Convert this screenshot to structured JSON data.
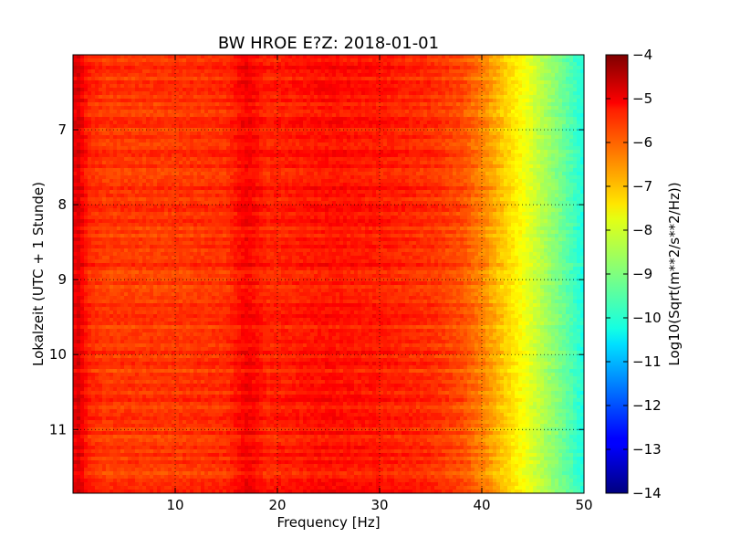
{
  "chart_data": {
    "type": "heatmap",
    "title": "BW HROE E?Z: 2018-01-01",
    "xlabel": "Frequency [Hz]",
    "ylabel": "Lokalzeit (UTC + 1 Stunde)",
    "xlim": [
      0,
      50
    ],
    "ylim": [
      6.0,
      11.85
    ],
    "y_axis_inverted": true,
    "x_ticks": [
      10,
      20,
      30,
      40,
      50
    ],
    "x_tick_labels": [
      "10",
      "20",
      "30",
      "40",
      "50"
    ],
    "y_ticks": [
      7,
      8,
      9,
      10,
      11
    ],
    "y_tick_labels": [
      "7",
      "8",
      "9",
      "10",
      "11"
    ],
    "grid": true,
    "colormap": "jet",
    "colorbar": {
      "label": "Log10(Sqrt(m**2/s**2/Hz))",
      "range": [
        -14,
        -4
      ],
      "ticks": [
        -4,
        -5,
        -6,
        -7,
        -8,
        -9,
        -10,
        -11,
        -12,
        -13,
        -14
      ],
      "tick_labels": [
        "−4",
        "−5",
        "−6",
        "−7",
        "−8",
        "−9",
        "−10",
        "−11",
        "−12",
        "−13",
        "−14"
      ]
    },
    "spectral_profile": {
      "frequency_hz": [
        0,
        0.5,
        1.5,
        3,
        10,
        15,
        17,
        19,
        25,
        30,
        35,
        38,
        40,
        42,
        44,
        46,
        48,
        50
      ],
      "level": [
        -5.2,
        -4.9,
        -5.6,
        -5.8,
        -5.8,
        -5.7,
        -5.2,
        -5.6,
        -5.4,
        -5.5,
        -5.7,
        -6.0,
        -6.5,
        -7.2,
        -7.8,
        -8.5,
        -9.2,
        -10.0
      ]
    }
  }
}
